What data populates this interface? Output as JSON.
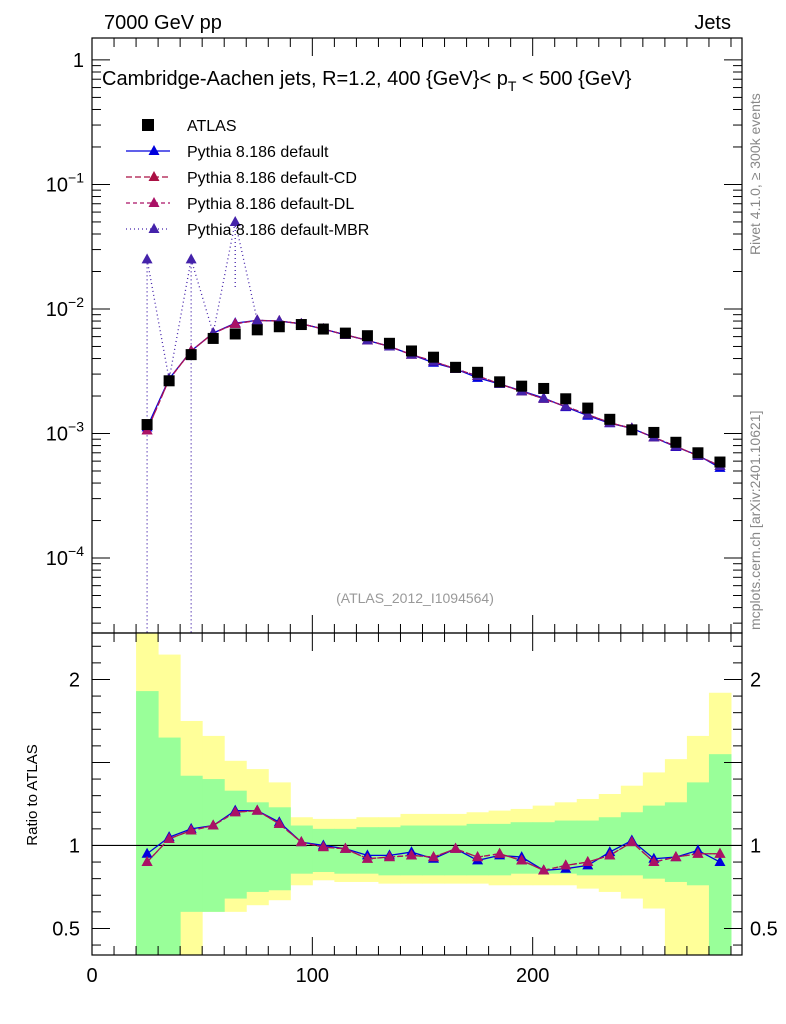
{
  "header": {
    "left": "7000 GeV pp",
    "right": "Jets"
  },
  "side": {
    "rivet": "Rivet 4.1.0, ≥ 300k events",
    "mcplots": "mcplots.cern.ch [arXiv:2401.10621]"
  },
  "chart_data": [
    {
      "type": "scatter",
      "panel": "main",
      "title": "Cambridge-Aachen jets, R=1.2, 400 {GeV}< p_T < 500 {GeV}",
      "title_parts": {
        "pre": "Cambridge-Aachen jets, R=1.2, 400 {GeV}< p",
        "sub": "T",
        "post": " < 500 {GeV}"
      },
      "reference": "(ATLAS_2012_I1094564)",
      "xlabel": "",
      "ylabel": "",
      "xlim": [
        0,
        295
      ],
      "ylim": [
        2.5e-05,
        1.5
      ],
      "yscale": "log",
      "ytick_labels": [
        {
          "value": 1,
          "base": "1",
          "exp": ""
        },
        {
          "value": 0.1,
          "base": "10",
          "exp": "−1"
        },
        {
          "value": 0.01,
          "base": "10",
          "exp": "−2"
        },
        {
          "value": 0.001,
          "base": "10",
          "exp": "−3"
        },
        {
          "value": 0.0001,
          "base": "10",
          "exp": "−4"
        }
      ],
      "x": [
        25,
        35,
        45,
        55,
        65,
        75,
        85,
        95,
        105,
        115,
        125,
        135,
        145,
        155,
        165,
        175,
        185,
        195,
        205,
        215,
        225,
        235,
        245,
        255,
        265,
        275,
        285
      ],
      "series": [
        {
          "name": "ATLAS",
          "marker": "square",
          "color": "#000000",
          "values": [
            0.00118,
            0.00265,
            0.0043,
            0.0058,
            0.0063,
            0.0068,
            0.0072,
            0.0075,
            0.0069,
            0.0064,
            0.0061,
            0.0053,
            0.0046,
            0.0041,
            0.0034,
            0.0031,
            0.0026,
            0.0024,
            0.0023,
            0.0019,
            0.0016,
            0.0013,
            0.00107,
            0.00102,
            0.00085,
            0.0007,
            0.00059
          ]
        },
        {
          "name": "Pythia 8.186 default",
          "marker": "triangle",
          "color": "#0000dd",
          "dash": "",
          "values": [
            0.00112,
            0.00275,
            0.0046,
            0.0064,
            0.0077,
            0.0081,
            0.008,
            0.0076,
            0.0069,
            0.0062,
            0.0056,
            0.005,
            0.0043,
            0.0037,
            0.0033,
            0.0028,
            0.0025,
            0.0022,
            0.00193,
            0.00163,
            0.00139,
            0.00121,
            0.0011,
            0.00093,
            0.00078,
            0.00067,
            0.00053
          ]
        },
        {
          "name": "Pythia 8.186 default-CD",
          "marker": "triangle",
          "color": "#aa1144",
          "dash": "6,3",
          "values": [
            0.00106,
            0.00272,
            0.0046,
            0.0064,
            0.0076,
            0.0081,
            0.008,
            0.0076,
            0.0069,
            0.0062,
            0.0056,
            0.005,
            0.0043,
            0.0038,
            0.0033,
            0.0029,
            0.0025,
            0.00218,
            0.0019,
            0.00165,
            0.00142,
            0.00122,
            0.0011,
            0.00093,
            0.00079,
            0.00066,
            0.00055
          ]
        },
        {
          "name": "Pythia 8.186 default-DL",
          "marker": "triangle",
          "color": "#aa1166",
          "dash": "4,3",
          "values": [
            0.00106,
            0.00272,
            0.0046,
            0.0064,
            0.0076,
            0.0081,
            0.008,
            0.0076,
            0.0069,
            0.0062,
            0.0056,
            0.005,
            0.0043,
            0.0038,
            0.0033,
            0.0029,
            0.0025,
            0.00218,
            0.0019,
            0.00165,
            0.00142,
            0.00122,
            0.0011,
            0.00093,
            0.00079,
            0.00066,
            0.00055
          ]
        },
        {
          "name": "Pythia 8.186 default-MBR",
          "marker": "triangle",
          "color": "#4422aa",
          "dash": "1,3",
          "values": [
            0.025,
            0.00272,
            0.025,
            0.0064,
            0.05,
            0.0081,
            0.008,
            0.0076,
            0.0069,
            0.0062,
            0.0056,
            0.005,
            0.0043,
            0.0038,
            0.0033,
            0.0029,
            0.0025,
            0.00218,
            0.0019,
            0.00165,
            0.00142,
            0.00122,
            0.0011,
            0.00093,
            0.00079,
            0.00066,
            0.00055
          ],
          "spikes": [
            {
              "x": 25,
              "from": 0.025,
              "to": 1e-05
            },
            {
              "x": 45,
              "from": 0.025,
              "to": 1e-05
            },
            {
              "x": 65,
              "from": 0.05,
              "to": 0.015
            }
          ]
        }
      ]
    },
    {
      "type": "line",
      "panel": "ratio",
      "ylabel": "Ratio to ATLAS",
      "xlim": [
        0,
        295
      ],
      "ylim": [
        0.34,
        2.28
      ],
      "xtick_labels": [
        "0",
        "100",
        "200"
      ],
      "xtick_values": [
        0,
        100,
        200
      ],
      "ytick_labels": [
        "0.5",
        "1",
        "2"
      ],
      "ytick_values": [
        0.5,
        1,
        2
      ],
      "bin_edges": [
        20,
        30,
        40,
        50,
        60,
        70,
        80,
        90,
        100,
        110,
        120,
        130,
        140,
        150,
        160,
        170,
        180,
        190,
        200,
        210,
        220,
        230,
        240,
        250,
        260,
        270,
        280,
        290
      ],
      "band_green": {
        "lo": [
          0.34,
          0.34,
          0.6,
          0.6,
          0.68,
          0.72,
          0.73,
          0.83,
          0.84,
          0.83,
          0.83,
          0.82,
          0.82,
          0.82,
          0.82,
          0.82,
          0.82,
          0.83,
          0.83,
          0.83,
          0.82,
          0.82,
          0.82,
          0.8,
          0.78,
          0.76,
          0.34
        ],
        "hi": [
          1.93,
          1.65,
          1.42,
          1.4,
          1.33,
          1.26,
          1.23,
          1.12,
          1.1,
          1.1,
          1.11,
          1.11,
          1.12,
          1.12,
          1.12,
          1.13,
          1.13,
          1.14,
          1.14,
          1.15,
          1.15,
          1.17,
          1.2,
          1.24,
          1.26,
          1.38,
          1.55
        ]
      },
      "band_yellow": {
        "lo": [
          0.34,
          0.34,
          0.34,
          0.6,
          0.6,
          0.64,
          0.67,
          0.76,
          0.79,
          0.78,
          0.78,
          0.77,
          0.77,
          0.77,
          0.77,
          0.77,
          0.76,
          0.76,
          0.76,
          0.76,
          0.74,
          0.72,
          0.68,
          0.62,
          0.34,
          0.34,
          0.34
        ],
        "hi": [
          2.28,
          2.15,
          1.75,
          1.66,
          1.51,
          1.46,
          1.38,
          1.17,
          1.16,
          1.16,
          1.17,
          1.17,
          1.19,
          1.19,
          1.19,
          1.2,
          1.21,
          1.22,
          1.24,
          1.26,
          1.28,
          1.31,
          1.36,
          1.44,
          1.52,
          1.66,
          1.92
        ]
      },
      "x": [
        25,
        35,
        45,
        55,
        65,
        75,
        85,
        95,
        105,
        115,
        125,
        135,
        145,
        155,
        165,
        175,
        185,
        195,
        205,
        215,
        225,
        235,
        245,
        255,
        265,
        275,
        285
      ],
      "series": [
        {
          "name": "Pythia 8.186 default",
          "color": "#0000dd",
          "dash": "",
          "values": [
            0.95,
            1.05,
            1.1,
            1.12,
            1.21,
            1.21,
            1.14,
            1.02,
            1.0,
            0.98,
            0.94,
            0.94,
            0.96,
            0.92,
            0.98,
            0.91,
            0.94,
            0.93,
            0.85,
            0.86,
            0.88,
            0.96,
            1.03,
            0.92,
            0.93,
            0.97,
            0.9
          ]
        },
        {
          "name": "Pythia 8.186 default-CD",
          "color": "#aa1144",
          "dash": "6,3",
          "values": [
            0.9,
            1.04,
            1.09,
            1.12,
            1.2,
            1.21,
            1.13,
            1.02,
            0.99,
            0.98,
            0.92,
            0.93,
            0.94,
            0.93,
            0.98,
            0.93,
            0.95,
            0.91,
            0.85,
            0.88,
            0.9,
            0.94,
            1.02,
            0.9,
            0.93,
            0.95,
            0.95
          ]
        },
        {
          "name": "Pythia 8.186 default-DL",
          "color": "#aa1166",
          "dash": "4,3",
          "values": [
            0.9,
            1.04,
            1.09,
            1.12,
            1.2,
            1.21,
            1.13,
            1.02,
            0.99,
            0.98,
            0.92,
            0.93,
            0.94,
            0.93,
            0.98,
            0.93,
            0.95,
            0.91,
            0.85,
            0.88,
            0.9,
            0.94,
            1.02,
            0.9,
            0.93,
            0.95,
            0.95
          ]
        }
      ]
    }
  ]
}
